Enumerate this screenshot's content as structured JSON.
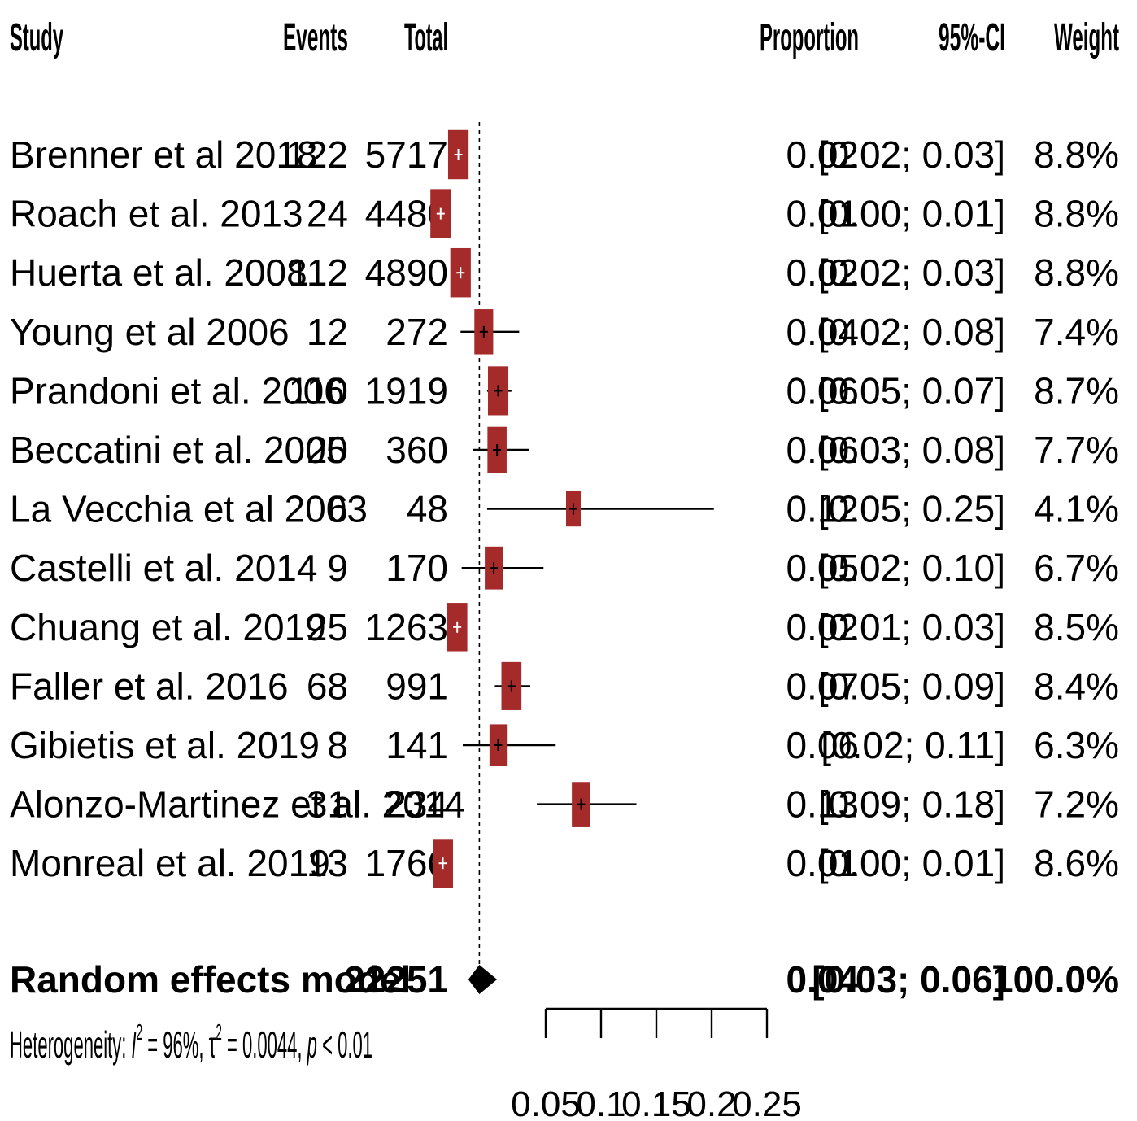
{
  "headers": {
    "study": "Study",
    "events": "Events",
    "total": "Total",
    "proportion": "Proportion",
    "ci": "95%-CI",
    "weight": "Weight"
  },
  "chart_data": {
    "type": "forest",
    "title": "",
    "xlabel": "",
    "xlim": [
      0,
      0.25
    ],
    "x_ticks": [
      0.05,
      0.1,
      0.15,
      0.2,
      0.25
    ],
    "x_tick_labels": [
      "0.05",
      "0.1",
      "0.15",
      "0.2",
      "0.25"
    ],
    "reference_line": 0.04,
    "studies": [
      {
        "study": "Brenner et al 2018",
        "events": "122",
        "total": "5717",
        "proportion": 0.021,
        "ci_low": 0.018,
        "ci_high": 0.026,
        "weight": 8.8,
        "proportion_label": "0.02",
        "ci_label": "[0.02; 0.03]",
        "weight_label": "8.8%"
      },
      {
        "study": "Roach et al. 2013",
        "events": "24",
        "total": "4480",
        "proportion": 0.005,
        "ci_low": 0.003,
        "ci_high": 0.008,
        "weight": 8.8,
        "proportion_label": "0.01",
        "ci_label": "[0.00; 0.01]",
        "weight_label": "8.8%"
      },
      {
        "study": "Huerta et al. 2008",
        "events": "112",
        "total": "4890",
        "proportion": 0.023,
        "ci_low": 0.019,
        "ci_high": 0.028,
        "weight": 8.8,
        "proportion_label": "0.02",
        "ci_label": "[0.02; 0.03]",
        "weight_label": "8.8%"
      },
      {
        "study": "Young et al 2006",
        "events": "12",
        "total": "272",
        "proportion": 0.044,
        "ci_low": 0.023,
        "ci_high": 0.076,
        "weight": 7.4,
        "proportion_label": "0.04",
        "ci_label": "[0.02; 0.08]",
        "weight_label": "7.4%"
      },
      {
        "study": "Prandoni et al. 2006",
        "events": "110",
        "total": "1919",
        "proportion": 0.057,
        "ci_low": 0.047,
        "ci_high": 0.069,
        "weight": 8.7,
        "proportion_label": "0.06",
        "ci_label": "[0.05; 0.07]",
        "weight_label": "8.7%"
      },
      {
        "study": "Beccatini et al. 2005",
        "events": "20",
        "total": "360",
        "proportion": 0.056,
        "ci_low": 0.034,
        "ci_high": 0.085,
        "weight": 7.7,
        "proportion_label": "0.06",
        "ci_label": "[0.03; 0.08]",
        "weight_label": "7.7%"
      },
      {
        "study": "La Vecchia et al 2003",
        "events": "6",
        "total": "48",
        "proportion": 0.125,
        "ci_low": 0.047,
        "ci_high": 0.252,
        "weight": 4.1,
        "proportion_label": "0.12",
        "ci_label": "[0.05; 0.25]",
        "weight_label": "4.1%"
      },
      {
        "study": "Castelli et al. 2014",
        "events": "9",
        "total": "170",
        "proportion": 0.053,
        "ci_low": 0.024,
        "ci_high": 0.098,
        "weight": 6.7,
        "proportion_label": "0.05",
        "ci_label": "[0.02; 0.10]",
        "weight_label": "6.7%"
      },
      {
        "study": "Chuang et al. 2019",
        "events": "25",
        "total": "1263",
        "proportion": 0.02,
        "ci_low": 0.013,
        "ci_high": 0.029,
        "weight": 8.5,
        "proportion_label": "0.02",
        "ci_label": "[0.01; 0.03]",
        "weight_label": "8.5%"
      },
      {
        "study": "Faller et al. 2016",
        "events": "68",
        "total": "991",
        "proportion": 0.069,
        "ci_low": 0.054,
        "ci_high": 0.086,
        "weight": 8.4,
        "proportion_label": "0.07",
        "ci_label": "[0.05; 0.09]",
        "weight_label": "8.4%"
      },
      {
        "study": "Gibietis et al. 2019",
        "events": "8",
        "total": "141",
        "proportion": 0.057,
        "ci_low": 0.025,
        "ci_high": 0.109,
        "weight": 6.3,
        "proportion_label": "0.06",
        "ci_label": "[0.02; 0.11]",
        "weight_label": "6.3%"
      },
      {
        "study": "Alonzo-Martinez et al. 2014",
        "events": "31",
        "total": "234",
        "proportion": 0.132,
        "ci_low": 0.092,
        "ci_high": 0.182,
        "weight": 7.2,
        "proportion_label": "0.13",
        "ci_label": "[0.09; 0.18]",
        "weight_label": "7.2%"
      },
      {
        "study": "Monreal et al. 2019",
        "events": "13",
        "total": "1766",
        "proportion": 0.007,
        "ci_low": 0.004,
        "ci_high": 0.013,
        "weight": 8.6,
        "proportion_label": "0.01",
        "ci_label": "[0.00; 0.01]",
        "weight_label": "8.6%"
      }
    ],
    "pooled": {
      "label": "Random effects model",
      "total": "22251",
      "estimate": 0.04,
      "ci_low": 0.03,
      "ci_high": 0.056,
      "proportion_label": "0.04",
      "ci_label": "[0.03; 0.06]",
      "weight_label": "100.0%"
    },
    "heterogeneity": {
      "prefix": "Heterogeneity: ",
      "i2_symbol": "I",
      "i2_value": " = 96%, ",
      "tau_symbol": "τ",
      "tau_value": " = 0.0044, ",
      "p_symbol": "p",
      "p_value": " < 0.01"
    },
    "colors": {
      "box": "#a52a2a",
      "diamond": "#000000",
      "line": "#000000"
    }
  }
}
